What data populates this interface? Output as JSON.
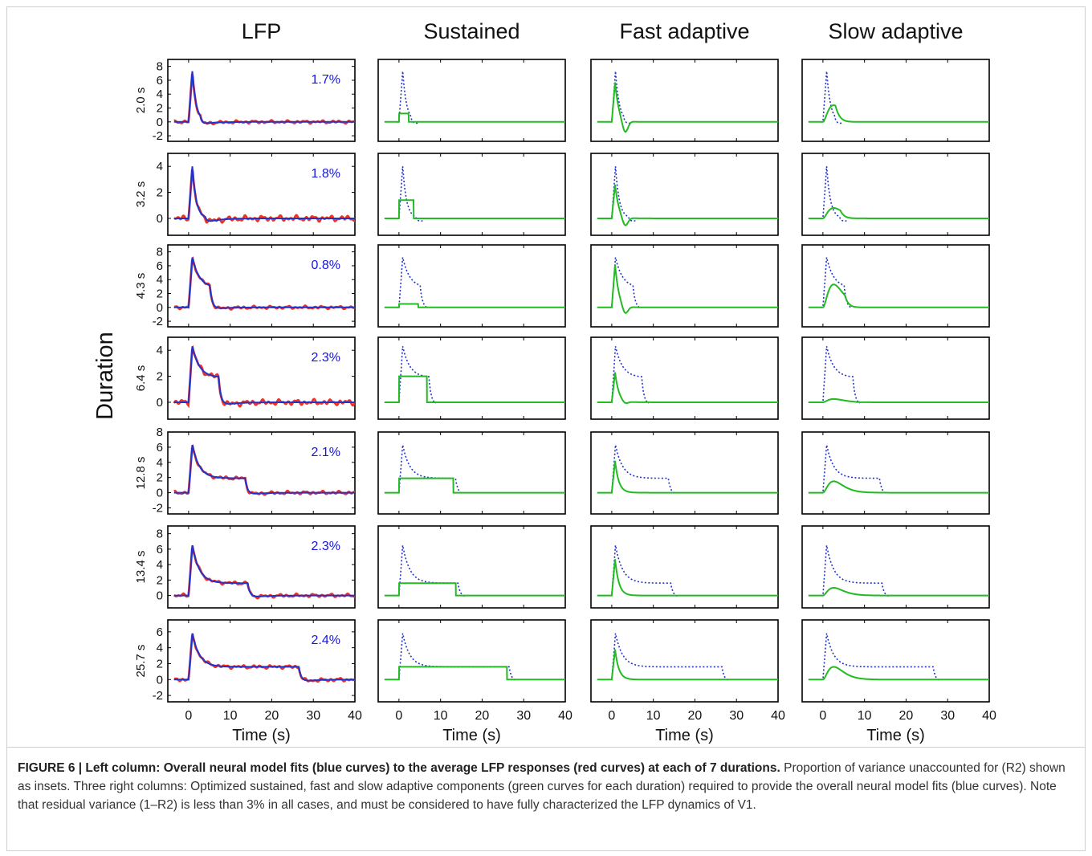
{
  "columns": [
    "LFP",
    "Sustained",
    "Fast adaptive",
    "Slow adaptive"
  ],
  "row_label": "Duration",
  "x_axis_label": "Time (s)",
  "caption": {
    "bold": "FIGURE 6 | Left column: Overall neural model fits (blue curves) to the average LFP responses (red curves) at each of 7 durations.",
    "text": " Proportion of variance unaccounted for (R2) shown as insets. Three right columns: Optimized sustained, fast and slow adaptive components (green curves for each duration) required to provide the overall neural model fits (blue curves). Note that residual variance (1–R2) is less than 3% in all cases, and must be considered to have fully characterized the LFP dynamics of V1."
  },
  "colors": {
    "lfp": "#ee3322",
    "fit": "#2233cc",
    "component": "#22bb22",
    "inset_text": "#1515dd"
  },
  "chart_data": {
    "type": "line",
    "x_range": [
      -5,
      40
    ],
    "x_ticks": [
      0,
      10,
      20,
      30,
      40
    ],
    "rows": [
      {
        "duration_label": "2.0 s",
        "duration": 2.0,
        "inset": "1.7%",
        "y_range": [
          -2.8,
          9
        ],
        "y_ticks": [
          -2,
          0,
          2,
          4,
          6,
          8
        ],
        "peak": 7.3,
        "plateau": 0,
        "sustained": 1.2,
        "fast_peak": 5.7,
        "fast_undershoot": -1.8,
        "slow_peak": 2.4
      },
      {
        "duration_label": "3.2 s",
        "duration": 3.2,
        "inset": "1.8%",
        "y_range": [
          -1.3,
          5
        ],
        "y_ticks": [
          0,
          2,
          4
        ],
        "peak": 4.0,
        "plateau": 0,
        "sustained": 1.4,
        "fast_peak": 2.6,
        "fast_undershoot": -0.7,
        "slow_peak": 0.8
      },
      {
        "duration_label": "4.3 s",
        "duration": 4.3,
        "inset": "0.8%",
        "y_range": [
          -2.8,
          9
        ],
        "y_ticks": [
          -2,
          0,
          2,
          4,
          6,
          8
        ],
        "peak": 7.2,
        "plateau": 2.8,
        "sustained": 0.5,
        "fast_peak": 6.2,
        "fast_undershoot": -1.2,
        "slow_peak": 3.3
      },
      {
        "duration_label": "6.4 s",
        "duration": 6.4,
        "inset": "2.3%",
        "y_range": [
          -1.3,
          5
        ],
        "y_ticks": [
          0,
          2,
          4
        ],
        "peak": 4.3,
        "plateau": 1.9,
        "sustained": 2.0,
        "fast_peak": 2.3,
        "fast_undershoot": -0.2,
        "slow_peak": 0.25
      },
      {
        "duration_label": "12.8 s",
        "duration": 12.8,
        "inset": "2.1%",
        "y_range": [
          -2.8,
          8
        ],
        "y_ticks": [
          -2,
          0,
          2,
          4,
          6,
          8
        ],
        "peak": 6.3,
        "plateau": 1.9,
        "sustained": 1.9,
        "fast_peak": 4.2,
        "fast_undershoot": 0,
        "slow_peak": 1.5
      },
      {
        "duration_label": "13.4 s",
        "duration": 13.4,
        "inset": "2.3%",
        "y_range": [
          -1.6,
          9
        ],
        "y_ticks": [
          0,
          2,
          4,
          6,
          8
        ],
        "peak": 6.5,
        "plateau": 1.6,
        "sustained": 1.6,
        "fast_peak": 4.7,
        "fast_undershoot": 0,
        "slow_peak": 1.0
      },
      {
        "duration_label": "25.7 s",
        "duration": 25.7,
        "inset": "2.4%",
        "y_range": [
          -2.8,
          7.5
        ],
        "y_ticks": [
          -2,
          0,
          2,
          4,
          6
        ],
        "peak": 5.8,
        "plateau": 1.6,
        "sustained": 1.6,
        "fast_peak": 3.8,
        "fast_undershoot": 0,
        "slow_peak": 1.6
      }
    ]
  }
}
